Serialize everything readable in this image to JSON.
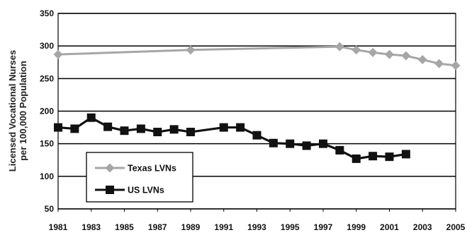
{
  "chart_data": {
    "type": "line",
    "ylabel_lines": [
      "Licensed Vocational Nurses",
      "per 100,000 Population"
    ],
    "xlabel": "",
    "title": "",
    "ylim": [
      50,
      350
    ],
    "yticks": [
      50,
      100,
      150,
      200,
      250,
      300,
      350
    ],
    "xlim": [
      1981,
      2005
    ],
    "xticks": [
      "1981",
      "1983",
      "1985",
      "1987",
      "1989",
      "1991",
      "1993",
      "1995",
      "1997",
      "1999",
      "2001",
      "2003",
      "2005"
    ],
    "grid": "horizontal",
    "legend_position": "lower-left",
    "series": [
      {
        "name": "Texas LVNs",
        "color": "#a6a6a6",
        "marker": "diamond",
        "x": [
          1981,
          1989,
          1998,
          1999,
          2000,
          2001,
          2002,
          2003,
          2004,
          2005
        ],
        "y": [
          287,
          294,
          299,
          294,
          290,
          287,
          285,
          279,
          273,
          270
        ]
      },
      {
        "name": "US LVNs",
        "color": "#111111",
        "marker": "square",
        "x": [
          1981,
          1982,
          1983,
          1984,
          1985,
          1986,
          1987,
          1988,
          1989,
          1991,
          1992,
          1993,
          1994,
          1995,
          1996,
          1997,
          1998,
          1999,
          2000,
          2001,
          2002
        ],
        "y": [
          175,
          173,
          190,
          176,
          170,
          173,
          168,
          172,
          168,
          175,
          175,
          163,
          151,
          150,
          147,
          150,
          140,
          127,
          131,
          130,
          134
        ]
      }
    ]
  }
}
